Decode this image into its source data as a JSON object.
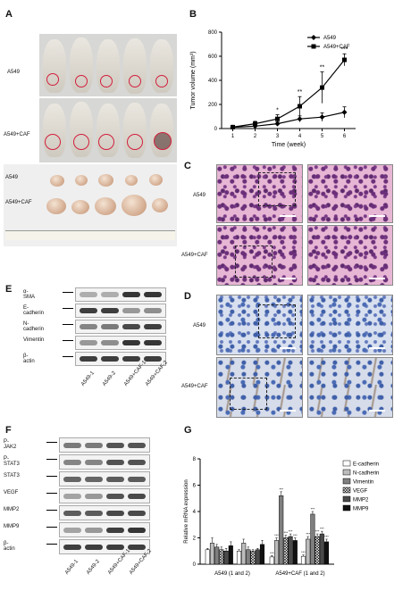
{
  "panels": {
    "A": {
      "label": "A",
      "row1": "A549",
      "row2": "A549+CAF",
      "tumor_row1": "A549",
      "tumor_row2": "A549+CAF"
    },
    "B": {
      "label": "B"
    },
    "C": {
      "label": "C",
      "row1": "A549",
      "row2": "A549+CAF"
    },
    "D": {
      "label": "D",
      "row1": "A549",
      "row2": "A549+CAF"
    },
    "E": {
      "label": "E",
      "proteins": [
        "α-SMA",
        "E-cadherin",
        "N-cadherin",
        "Vimentin",
        "β-actin"
      ],
      "lanes": [
        "A549-1",
        "A549-2",
        "A549+CAF-1",
        "A549+CAF-2"
      ]
    },
    "F": {
      "label": "F",
      "proteins": [
        "P-JAK2",
        "P-STAT3",
        "STAT3",
        "VEGF",
        "MMP2",
        "MMP9",
        "β-actin"
      ],
      "lanes": [
        "A549-1",
        "A549-2",
        "A549+CAF-1",
        "A549+CAF-2"
      ]
    },
    "G": {
      "label": "G"
    }
  },
  "chart_data": [
    {
      "type": "line",
      "panel": "B",
      "xlabel": "Time (week)",
      "ylabel": "Tumor volume (mm³)",
      "x": [
        1,
        2,
        3,
        4,
        5,
        6
      ],
      "xlim": [
        0.5,
        6.5
      ],
      "ylim": [
        0,
        800
      ],
      "yticks": [
        0,
        200,
        400,
        600,
        800
      ],
      "series": [
        {
          "name": "A549",
          "values": [
            10,
            20,
            40,
            80,
            95,
            135
          ],
          "errors": [
            5,
            10,
            15,
            25,
            35,
            45
          ],
          "marker": "diamond"
        },
        {
          "name": "A549+CAF",
          "values": [
            12,
            40,
            80,
            185,
            340,
            570
          ],
          "errors": [
            5,
            20,
            35,
            80,
            130,
            50
          ],
          "marker": "square"
        }
      ],
      "annotations": [
        {
          "x": 3,
          "text": "*"
        },
        {
          "x": 4,
          "text": "**"
        },
        {
          "x": 5,
          "text": "**"
        },
        {
          "x": 6,
          "text": "***"
        }
      ],
      "legend": "top-left"
    },
    {
      "type": "bar",
      "panel": "G",
      "ylabel": "Relative mRNA expression",
      "ylim": [
        0,
        8
      ],
      "yticks": [
        0,
        2,
        4,
        6,
        8
      ],
      "groups": [
        "A549 (1 and 2)",
        "A549+CAF (1 and 2)"
      ],
      "series": [
        {
          "name": "E-cadherin",
          "values": [
            1.1,
            1.0,
            0.55,
            0.6
          ],
          "errors": [
            0.1,
            0.1,
            0.1,
            0.1
          ],
          "color": "#ffffff"
        },
        {
          "name": "N-cadherin",
          "values": [
            1.6,
            1.6,
            1.8,
            1.9
          ],
          "errors": [
            0.4,
            0.3,
            0.2,
            0.2
          ],
          "color": "#bcbcbc"
        },
        {
          "name": "Vimentin",
          "values": [
            1.3,
            1.1,
            5.2,
            3.8
          ],
          "errors": [
            0.2,
            0.2,
            0.3,
            0.2
          ],
          "color": "#7f7f7f"
        },
        {
          "name": "VEGF",
          "values": [
            1.1,
            1.0,
            2.0,
            2.1
          ],
          "errors": [
            0.2,
            0.1,
            0.2,
            0.2
          ],
          "color": "hatch"
        },
        {
          "name": "MMP2",
          "values": [
            1.0,
            1.1,
            2.1,
            2.3
          ],
          "errors": [
            0.2,
            0.1,
            0.2,
            0.2
          ],
          "color": "#4a4a4a"
        },
        {
          "name": "MMP9",
          "values": [
            1.4,
            1.5,
            1.8,
            1.7
          ],
          "errors": [
            0.3,
            0.3,
            0.2,
            0.2
          ],
          "color": "#111111"
        }
      ],
      "annotations": [
        {
          "group": 1,
          "series": 0,
          "text": "***"
        },
        {
          "group": 1,
          "series": 1,
          "text": "***"
        },
        {
          "group": 1,
          "series": 2,
          "text": "***"
        },
        {
          "group": 1,
          "series": 3,
          "text": "***"
        },
        {
          "group": 1,
          "series": 4,
          "text": "***"
        },
        {
          "group": 1,
          "series": 5,
          "text": "***"
        }
      ],
      "legend": "right"
    }
  ]
}
